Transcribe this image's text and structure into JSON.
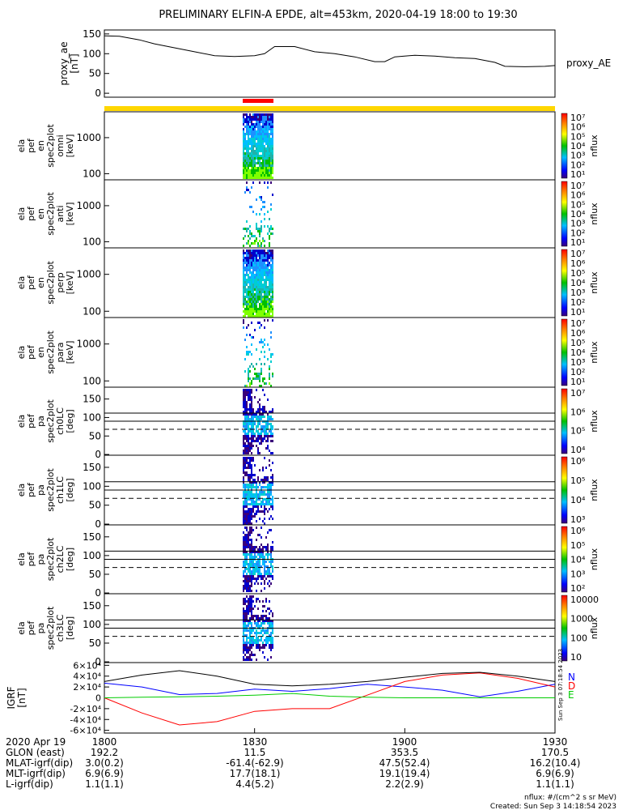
{
  "title": "PRELIMINARY ELFIN-A EPDE, alt=453km, 2020-04-19 18:00 to 19:30",
  "chart_data": [
    {
      "type": "line",
      "panel": "proxy_ae",
      "ylabel_lines": [
        "proxy_ae",
        "[nT]"
      ],
      "legend": "proxy_AE",
      "ylim": [
        -10,
        160
      ],
      "yticks": [
        "150",
        "100",
        "50",
        "0"
      ],
      "ytick_values": [
        150,
        100,
        50,
        0
      ],
      "x": [
        0,
        3,
        7,
        10,
        14,
        18,
        22,
        26,
        30,
        32,
        34,
        38,
        42,
        46,
        50,
        54,
        56,
        58,
        62,
        66,
        70,
        74,
        78,
        80,
        84,
        88,
        90
      ],
      "series": [
        {
          "values": [
            145,
            144,
            135,
            125,
            115,
            105,
            95,
            93,
            95,
            100,
            118,
            118,
            105,
            100,
            92,
            80,
            80,
            92,
            96,
            94,
            90,
            88,
            78,
            68,
            67,
            68,
            70
          ]
        }
      ]
    },
    {
      "type": "heatmap",
      "panel": "spec2plot omni",
      "ylabel_lines": [
        "ela",
        "pef",
        "en",
        "spec2plot",
        "omni",
        "[keV]"
      ],
      "yticks": [
        "1000",
        "100"
      ],
      "ytick_values": [
        1000,
        100
      ],
      "colorbar_label": "nflux",
      "colorbar_ticks": [
        "10⁷",
        "10⁶",
        "10⁵",
        "10⁴",
        "10³",
        "10²",
        "10¹"
      ]
    },
    {
      "type": "heatmap",
      "panel": "spec2plot anti",
      "ylabel_lines": [
        "ela",
        "pef",
        "en",
        "spec2plot",
        "anti",
        "[keV]"
      ],
      "yticks": [
        "1000",
        "100"
      ],
      "ytick_values": [
        1000,
        100
      ],
      "colorbar_label": "nflux",
      "colorbar_ticks": [
        "10⁷",
        "10⁶",
        "10⁵",
        "10⁴",
        "10³",
        "10²",
        "10¹"
      ]
    },
    {
      "type": "heatmap",
      "panel": "spec2plot perp",
      "ylabel_lines": [
        "ela",
        "pef",
        "en",
        "spec2plot",
        "perp",
        "[keV]"
      ],
      "yticks": [
        "1000",
        "100"
      ],
      "ytick_values": [
        1000,
        100
      ],
      "colorbar_label": "nflux",
      "colorbar_ticks": [
        "10⁷",
        "10⁶",
        "10⁵",
        "10⁴",
        "10³",
        "10²",
        "10¹"
      ]
    },
    {
      "type": "heatmap",
      "panel": "spec2plot para",
      "ylabel_lines": [
        "ela",
        "pef",
        "en",
        "spec2plot",
        "para",
        "[keV]"
      ],
      "yticks": [
        "1000",
        "100"
      ],
      "ytick_values": [
        1000,
        100
      ],
      "colorbar_label": "nflux",
      "colorbar_ticks": [
        "10⁷",
        "10⁶",
        "10⁵",
        "10⁴",
        "10³",
        "10²",
        "10¹"
      ]
    },
    {
      "type": "heatmap",
      "panel": "spec2plot ch0LC",
      "ylabel_lines": [
        "ela",
        "pef",
        "pa",
        "spec2plot",
        "ch0LC",
        "[deg]"
      ],
      "yticks": [
        "150",
        "100",
        "50",
        "0"
      ],
      "ytick_values": [
        150,
        100,
        50,
        0
      ],
      "colorbar_label": "nflux",
      "colorbar_ticks": [
        "10⁷",
        "10⁶",
        "10⁵",
        "10⁴"
      ]
    },
    {
      "type": "heatmap",
      "panel": "spec2plot ch1LC",
      "ylabel_lines": [
        "ela",
        "pef",
        "pa",
        "spec2plot",
        "ch1LC",
        "[deg]"
      ],
      "yticks": [
        "150",
        "100",
        "50",
        "0"
      ],
      "ytick_values": [
        150,
        100,
        50,
        0
      ],
      "colorbar_label": "nflux",
      "colorbar_ticks": [
        "10⁶",
        "10⁵",
        "10⁴",
        "10³"
      ]
    },
    {
      "type": "heatmap",
      "panel": "spec2plot ch2LC",
      "ylabel_lines": [
        "ela",
        "pef",
        "pa",
        "spec2plot",
        "ch2LC",
        "[deg]"
      ],
      "yticks": [
        "150",
        "100",
        "50",
        "0"
      ],
      "ytick_values": [
        150,
        100,
        50,
        0
      ],
      "colorbar_label": "nflux",
      "colorbar_ticks": [
        "10⁶",
        "10⁵",
        "10⁴",
        "10³",
        "10²"
      ]
    },
    {
      "type": "heatmap",
      "panel": "spec2plot ch3LC",
      "ylabel_lines": [
        "ela",
        "pef",
        "pa",
        "spec2plot",
        "ch3LC",
        "[deg]"
      ],
      "yticks": [
        "150",
        "100",
        "50",
        "0"
      ],
      "ytick_values": [
        150,
        100,
        50,
        0
      ],
      "colorbar_label": "nflux",
      "colorbar_ticks": [
        "10000",
        "1000",
        "100",
        "10"
      ]
    },
    {
      "type": "line",
      "panel": "IGRF",
      "ylabel_lines": [
        "IGRF",
        "[nT]"
      ],
      "ylim": [
        -65000,
        65000
      ],
      "yticks": [
        "6×10⁴",
        "4×10⁴",
        "2×10⁴",
        "0",
        "-2×10⁴",
        "-4×10⁴",
        "-6×10⁴"
      ],
      "ytick_values": [
        60000,
        40000,
        20000,
        0,
        -20000,
        -40000,
        -60000
      ],
      "x": [
        0,
        7.5,
        15,
        22.5,
        30,
        37.5,
        45,
        52.5,
        60,
        67.5,
        75,
        82.5,
        90
      ],
      "series": [
        {
          "name": "N",
          "color": "#0000ff",
          "values": [
            27000,
            20000,
            6000,
            8000,
            16000,
            12000,
            17000,
            25000,
            20000,
            14000,
            2000,
            12000,
            25000
          ]
        },
        {
          "name": "D",
          "color": "#ff0000",
          "values": [
            0,
            -28000,
            -50000,
            -44000,
            -25000,
            -20000,
            -20000,
            5000,
            30000,
            42000,
            46000,
            36000,
            20000
          ]
        },
        {
          "name": "E",
          "color": "#00cc00",
          "values": [
            0,
            1000,
            2000,
            3000,
            5000,
            8000,
            3000,
            1000,
            0,
            0,
            0,
            0,
            0
          ]
        },
        {
          "color": "#000000",
          "values": [
            30000,
            42000,
            50000,
            40000,
            25000,
            22000,
            25000,
            30000,
            38000,
            45000,
            47000,
            40000,
            30000
          ]
        }
      ]
    }
  ],
  "x_axis": {
    "rows": [
      {
        "label": "2020 Apr 19",
        "values": [
          "1800",
          "1830",
          "1900",
          "1930"
        ]
      },
      {
        "label": "GLON (east)",
        "values": [
          "192.2",
          "11.5",
          "353.5",
          "170.5"
        ]
      },
      {
        "label": "MLAT-igrf(dip)",
        "values": [
          "3.0(0.2)",
          "-61.4(-62.9)",
          "47.5(52.4)",
          "16.2(10.4)"
        ]
      },
      {
        "label": "MLT-igrf(dip)",
        "values": [
          "6.9(6.9)",
          "17.7(18.1)",
          "19.1(19.4)",
          "6.9(6.9)"
        ]
      },
      {
        "label": "L-igrf(dip)",
        "values": [
          "1.1(1.1)",
          "4.4(5.2)",
          "2.2(2.9)",
          "1.1(1.1)"
        ]
      }
    ]
  },
  "footer": {
    "line1": "nflux: #/(cm^2 s sr MeV)",
    "line2": "Created: Sun Sep  3 14:18:54 2023",
    "side_stamp": "Sun Sep  3 07:18:54 2023"
  },
  "colors": {
    "yellow_bar": "#ffd700",
    "red_bar": "#ff0000"
  }
}
